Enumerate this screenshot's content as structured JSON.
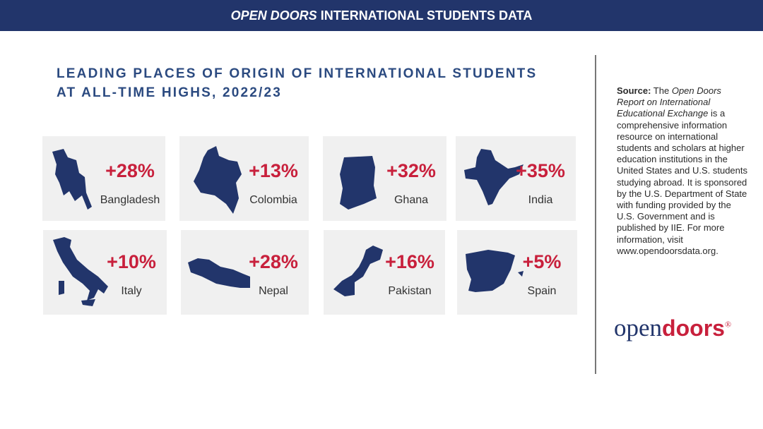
{
  "header": {
    "emphasis": "OPEN DOORS",
    "rest": "INTERNATIONAL STUDENTS DATA"
  },
  "title": {
    "line1": "LEADING PLACES OF ORIGIN OF INTERNATIONAL STUDENTS",
    "line2": "AT ALL-TIME HIGHS, 2022/23"
  },
  "cards": [
    {
      "country": "Bangladesh",
      "change": "+28%"
    },
    {
      "country": "Colombia",
      "change": "+13%"
    },
    {
      "country": "Ghana",
      "change": "+32%"
    },
    {
      "country": "India",
      "change": "+35%"
    },
    {
      "country": "Italy",
      "change": "+10%"
    },
    {
      "country": "Nepal",
      "change": "+28%"
    },
    {
      "country": "Pakistan",
      "change": "+16%"
    },
    {
      "country": "Spain",
      "change": "+5%"
    }
  ],
  "source": {
    "label": "Source:",
    "before": "The",
    "report": "Open Doors Report on International Educational Exchange",
    "after": "is a comprehensive information resource on international students and scholars at higher education institutions in the United States and U.S. students studying abroad. It is sponsored by the U.S. Department of State with funding provided by the U.S. Government and is published by IIE. For more information, visit www.opendoorsdata.org."
  },
  "logo": {
    "part1": "open",
    "part2": "doors",
    "mark": "®"
  }
}
